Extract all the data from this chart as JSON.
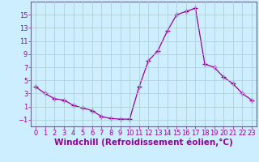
{
  "x": [
    0,
    1,
    2,
    3,
    4,
    5,
    6,
    7,
    8,
    9,
    10,
    11,
    12,
    13,
    14,
    15,
    16,
    17,
    18,
    19,
    20,
    21,
    22,
    23
  ],
  "y": [
    4.0,
    3.0,
    2.2,
    2.0,
    1.2,
    0.8,
    0.4,
    -0.5,
    -0.8,
    -0.9,
    -0.9,
    4.0,
    8.0,
    9.5,
    12.5,
    15.0,
    15.5,
    16.0,
    7.5,
    7.0,
    5.5,
    4.5,
    3.0,
    2.0
  ],
  "line_color": "#990099",
  "marker": "+",
  "marker_size": 4,
  "bg_color": "#cceeff",
  "grid_color": "#aacccc",
  "xlabel": "Windchill (Refroidissement éolien,°C)",
  "xlim": [
    -0.5,
    23.5
  ],
  "ylim": [
    -2,
    17
  ],
  "yticks": [
    -1,
    1,
    3,
    5,
    7,
    9,
    11,
    13,
    15
  ],
  "xticks": [
    0,
    1,
    2,
    3,
    4,
    5,
    6,
    7,
    8,
    9,
    10,
    11,
    12,
    13,
    14,
    15,
    16,
    17,
    18,
    19,
    20,
    21,
    22,
    23
  ],
  "tick_color": "#990099",
  "label_color": "#990099",
  "font_size_xlabel": 7.5,
  "font_size_ticks": 6.0,
  "spine_color": "#666688"
}
